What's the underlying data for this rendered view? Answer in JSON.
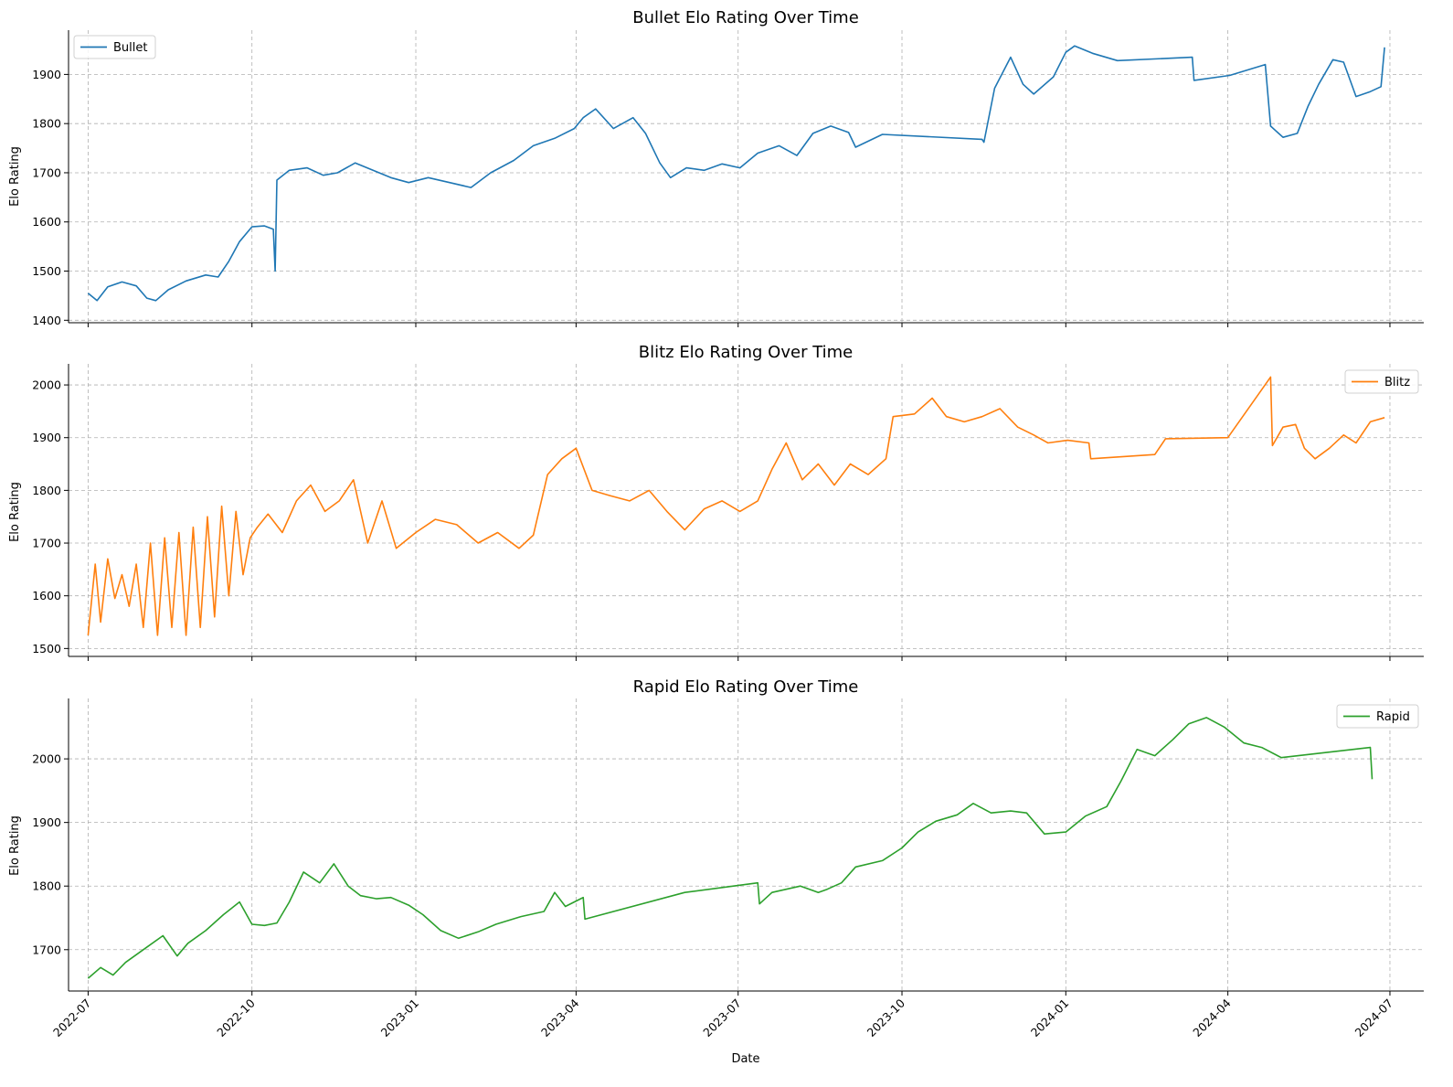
{
  "figure": {
    "xlabel": "Date"
  },
  "chart_data": [
    {
      "type": "line",
      "title": "Bullet Elo Rating Over Time",
      "xlabel": "",
      "ylabel": "Elo Rating",
      "xlim": [
        "2022-06-20",
        "2024-07-20"
      ],
      "ylim": [
        1395,
        1990
      ],
      "xticks": [
        "2022-07",
        "2022-10",
        "2023-01",
        "2023-04",
        "2023-07",
        "2023-10",
        "2024-01",
        "2024-04",
        "2024-07"
      ],
      "yticks": [
        1400,
        1500,
        1600,
        1700,
        1800,
        1900
      ],
      "grid": true,
      "legend": "top-left",
      "color": "#1f77b4",
      "series": [
        {
          "name": "Bullet",
          "x": [
            "2022-07-01",
            "2022-07-06",
            "2022-07-12",
            "2022-07-20",
            "2022-07-28",
            "2022-08-03",
            "2022-08-08",
            "2022-08-15",
            "2022-08-25",
            "2022-09-05",
            "2022-09-12",
            "2022-09-18",
            "2022-09-24",
            "2022-10-01",
            "2022-10-08",
            "2022-10-13",
            "2022-10-14",
            "2022-10-15",
            "2022-10-22",
            "2022-11-01",
            "2022-11-10",
            "2022-11-18",
            "2022-11-28",
            "2022-12-08",
            "2022-12-18",
            "2022-12-28",
            "2023-01-08",
            "2023-01-20",
            "2023-02-01",
            "2023-02-12",
            "2023-02-25",
            "2023-03-08",
            "2023-03-20",
            "2023-03-31",
            "2023-04-05",
            "2023-04-12",
            "2023-04-22",
            "2023-05-03",
            "2023-05-10",
            "2023-05-18",
            "2023-05-24",
            "2023-06-02",
            "2023-06-12",
            "2023-06-22",
            "2023-07-02",
            "2023-07-12",
            "2023-07-24",
            "2023-08-03",
            "2023-08-12",
            "2023-08-22",
            "2023-09-01",
            "2023-09-05",
            "2023-09-20",
            "2023-11-15",
            "2023-11-16",
            "2023-11-22",
            "2023-12-01",
            "2023-12-08",
            "2023-12-14",
            "2023-12-25",
            "2024-01-01",
            "2024-01-06",
            "2024-01-16",
            "2024-01-30",
            "2024-03-12",
            "2024-03-13",
            "2024-04-02",
            "2024-04-22",
            "2024-04-25",
            "2024-05-02",
            "2024-05-10",
            "2024-05-16",
            "2024-05-22",
            "2024-05-30",
            "2024-06-05",
            "2024-06-12",
            "2024-06-20",
            "2024-06-26",
            "2024-06-28"
          ],
          "y": [
            1455,
            1440,
            1468,
            1478,
            1470,
            1445,
            1440,
            1462,
            1480,
            1492,
            1488,
            1520,
            1560,
            1590,
            1592,
            1585,
            1500,
            1685,
            1705,
            1710,
            1695,
            1700,
            1720,
            1705,
            1690,
            1680,
            1690,
            1680,
            1670,
            1700,
            1725,
            1755,
            1770,
            1790,
            1812,
            1830,
            1790,
            1812,
            1780,
            1720,
            1690,
            1710,
            1705,
            1718,
            1710,
            1740,
            1755,
            1735,
            1780,
            1795,
            1782,
            1752,
            1778,
            1768,
            1762,
            1872,
            1935,
            1880,
            1860,
            1895,
            1945,
            1958,
            1943,
            1928,
            1935,
            1888,
            1898,
            1920,
            1795,
            1772,
            1780,
            1835,
            1880,
            1930,
            1925,
            1855,
            1865,
            1875,
            1955
          ]
        }
      ]
    },
    {
      "type": "line",
      "title": "Blitz Elo Rating Over Time",
      "xlabel": "",
      "ylabel": "Elo Rating",
      "xlim": [
        "2022-06-20",
        "2024-07-20"
      ],
      "ylim": [
        1485,
        2040
      ],
      "xticks": [
        "2022-07",
        "2022-10",
        "2023-01",
        "2023-04",
        "2023-07",
        "2023-10",
        "2024-01",
        "2024-04",
        "2024-07"
      ],
      "yticks": [
        1500,
        1600,
        1700,
        1800,
        1900,
        2000
      ],
      "grid": true,
      "legend": "top-right",
      "color": "#ff7f0e",
      "series": [
        {
          "name": "Blitz",
          "x": [
            "2022-07-01",
            "2022-07-05",
            "2022-07-08",
            "2022-07-12",
            "2022-07-16",
            "2022-07-20",
            "2022-07-24",
            "2022-07-28",
            "2022-08-01",
            "2022-08-05",
            "2022-08-09",
            "2022-08-13",
            "2022-08-17",
            "2022-08-21",
            "2022-08-25",
            "2022-08-29",
            "2022-09-02",
            "2022-09-06",
            "2022-09-10",
            "2022-09-14",
            "2022-09-18",
            "2022-09-22",
            "2022-09-26",
            "2022-09-30",
            "2022-10-04",
            "2022-10-10",
            "2022-10-18",
            "2022-10-26",
            "2022-11-03",
            "2022-11-11",
            "2022-11-19",
            "2022-11-27",
            "2022-12-05",
            "2022-12-13",
            "2022-12-21",
            "2023-01-01",
            "2023-01-12",
            "2023-01-24",
            "2023-02-05",
            "2023-02-16",
            "2023-02-28",
            "2023-03-08",
            "2023-03-16",
            "2023-03-24",
            "2023-04-01",
            "2023-04-10",
            "2023-04-20",
            "2023-05-01",
            "2023-05-12",
            "2023-05-22",
            "2023-06-01",
            "2023-06-12",
            "2023-06-22",
            "2023-07-02",
            "2023-07-12",
            "2023-07-20",
            "2023-07-28",
            "2023-08-06",
            "2023-08-15",
            "2023-08-24",
            "2023-09-02",
            "2023-09-12",
            "2023-09-22",
            "2023-09-26",
            "2023-10-08",
            "2023-10-18",
            "2023-10-26",
            "2023-11-05",
            "2023-11-15",
            "2023-11-25",
            "2023-12-05",
            "2023-12-14",
            "2023-12-22",
            "2024-01-02",
            "2024-01-14",
            "2024-01-15",
            "2024-02-20",
            "2024-02-26",
            "2024-04-01",
            "2024-04-25",
            "2024-04-26",
            "2024-05-02",
            "2024-05-09",
            "2024-05-14",
            "2024-05-20",
            "2024-05-28",
            "2024-06-05",
            "2024-06-12",
            "2024-06-20",
            "2024-06-28"
          ],
          "y": [
            1525,
            1660,
            1550,
            1670,
            1595,
            1640,
            1580,
            1660,
            1540,
            1700,
            1525,
            1710,
            1540,
            1720,
            1525,
            1730,
            1540,
            1750,
            1560,
            1770,
            1600,
            1760,
            1640,
            1710,
            1730,
            1755,
            1720,
            1780,
            1810,
            1760,
            1780,
            1820,
            1700,
            1780,
            1690,
            1720,
            1745,
            1735,
            1700,
            1720,
            1690,
            1715,
            1830,
            1860,
            1880,
            1800,
            1790,
            1780,
            1800,
            1760,
            1725,
            1765,
            1780,
            1760,
            1780,
            1840,
            1890,
            1820,
            1850,
            1810,
            1850,
            1830,
            1860,
            1940,
            1945,
            1975,
            1940,
            1930,
            1940,
            1955,
            1920,
            1905,
            1890,
            1895,
            1890,
            1860,
            1868,
            1898,
            1900,
            2015,
            1885,
            1920,
            1925,
            1880,
            1860,
            1880,
            1905,
            1890,
            1930,
            1938
          ]
        }
      ]
    },
    {
      "type": "line",
      "title": "Rapid Elo Rating Over Time",
      "xlabel": "Date",
      "ylabel": "Elo Rating",
      "xlim": [
        "2022-06-20",
        "2024-07-20"
      ],
      "ylim": [
        1635,
        2095
      ],
      "xticks": [
        "2022-07",
        "2022-10",
        "2023-01",
        "2023-04",
        "2023-07",
        "2023-10",
        "2024-01",
        "2024-04",
        "2024-07"
      ],
      "yticks": [
        1700,
        1800,
        1900,
        2000
      ],
      "grid": true,
      "legend": "top-right",
      "color": "#2ca02c",
      "series": [
        {
          "name": "Rapid",
          "x": [
            "2022-07-01",
            "2022-07-08",
            "2022-07-15",
            "2022-07-22",
            "2022-08-01",
            "2022-08-12",
            "2022-08-20",
            "2022-08-26",
            "2022-09-05",
            "2022-09-15",
            "2022-09-24",
            "2022-10-01",
            "2022-10-08",
            "2022-10-15",
            "2022-10-22",
            "2022-10-30",
            "2022-11-08",
            "2022-11-16",
            "2022-11-24",
            "2022-12-01",
            "2022-12-10",
            "2022-12-18",
            "2022-12-28",
            "2023-01-05",
            "2023-01-15",
            "2023-01-25",
            "2023-02-05",
            "2023-02-15",
            "2023-03-01",
            "2023-03-14",
            "2023-03-20",
            "2023-03-26",
            "2023-04-05",
            "2023-04-06",
            "2023-06-01",
            "2023-07-12",
            "2023-07-13",
            "2023-07-20",
            "2023-08-05",
            "2023-08-15",
            "2023-08-20",
            "2023-08-28",
            "2023-09-05",
            "2023-09-20",
            "2023-10-01",
            "2023-10-10",
            "2023-10-20",
            "2023-11-01",
            "2023-11-10",
            "2023-11-20",
            "2023-12-01",
            "2023-12-10",
            "2023-12-20",
            "2024-01-01",
            "2024-01-12",
            "2024-01-24",
            "2024-02-01",
            "2024-02-10",
            "2024-02-20",
            "2024-03-01",
            "2024-03-10",
            "2024-03-20",
            "2024-03-30",
            "2024-04-10",
            "2024-04-20",
            "2024-05-01",
            "2024-06-20",
            "2024-06-21"
          ],
          "y": [
            1655,
            1672,
            1660,
            1680,
            1700,
            1722,
            1690,
            1710,
            1730,
            1755,
            1775,
            1740,
            1738,
            1742,
            1775,
            1822,
            1805,
            1835,
            1800,
            1785,
            1780,
            1782,
            1770,
            1755,
            1730,
            1718,
            1728,
            1740,
            1752,
            1760,
            1790,
            1768,
            1782,
            1748,
            1790,
            1805,
            1772,
            1790,
            1800,
            1790,
            1795,
            1805,
            1830,
            1840,
            1860,
            1885,
            1902,
            1912,
            1930,
            1915,
            1918,
            1915,
            1882,
            1885,
            1910,
            1925,
            1965,
            2015,
            2005,
            2030,
            2055,
            2065,
            2050,
            2025,
            2018,
            2002,
            2018,
            1968
          ]
        }
      ]
    }
  ]
}
